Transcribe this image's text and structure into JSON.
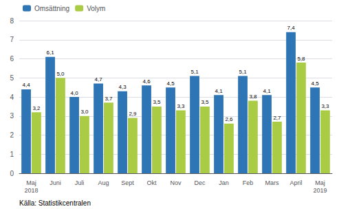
{
  "chart_data": {
    "type": "bar",
    "categories": [
      "Maj\n2018",
      "Juni",
      "Juli",
      "Aug",
      "Sept",
      "Okt",
      "Nov",
      "Dec",
      "Jan",
      "Feb",
      "Mars",
      "April",
      "Maj\n2019"
    ],
    "series": [
      {
        "name": "Omsättning",
        "color": "#2E75B6",
        "values": [
          4.4,
          6.1,
          4.0,
          4.7,
          4.3,
          4.6,
          4.5,
          5.1,
          4.1,
          5.1,
          4.1,
          7.4,
          4.5
        ],
        "value_labels": [
          "4,4",
          "6,1",
          "4,0",
          "4,7",
          "4,3",
          "4,6",
          "4,5",
          "5,1",
          "4,1",
          "5,1",
          "4,1",
          "7,4",
          "4,5"
        ]
      },
      {
        "name": "Volym",
        "color": "#AACC44",
        "values": [
          3.2,
          5.0,
          3.0,
          3.7,
          2.9,
          3.5,
          3.3,
          3.5,
          2.6,
          3.8,
          2.7,
          5.8,
          3.3
        ],
        "value_labels": [
          "3,2",
          "5,0",
          "3,0",
          "3,7",
          "2,9",
          "3,5",
          "3,3",
          "3,5",
          "2,6",
          "3,8",
          "2,7",
          "5,8",
          "3,3"
        ]
      }
    ],
    "ylim": [
      0,
      8
    ],
    "yticks": [
      0,
      1,
      2,
      3,
      4,
      5,
      6,
      7,
      8
    ],
    "grid": true,
    "legend": "upper left",
    "data_labels": true,
    "annotations": [
      "Källa: Statistikcentralen"
    ]
  }
}
